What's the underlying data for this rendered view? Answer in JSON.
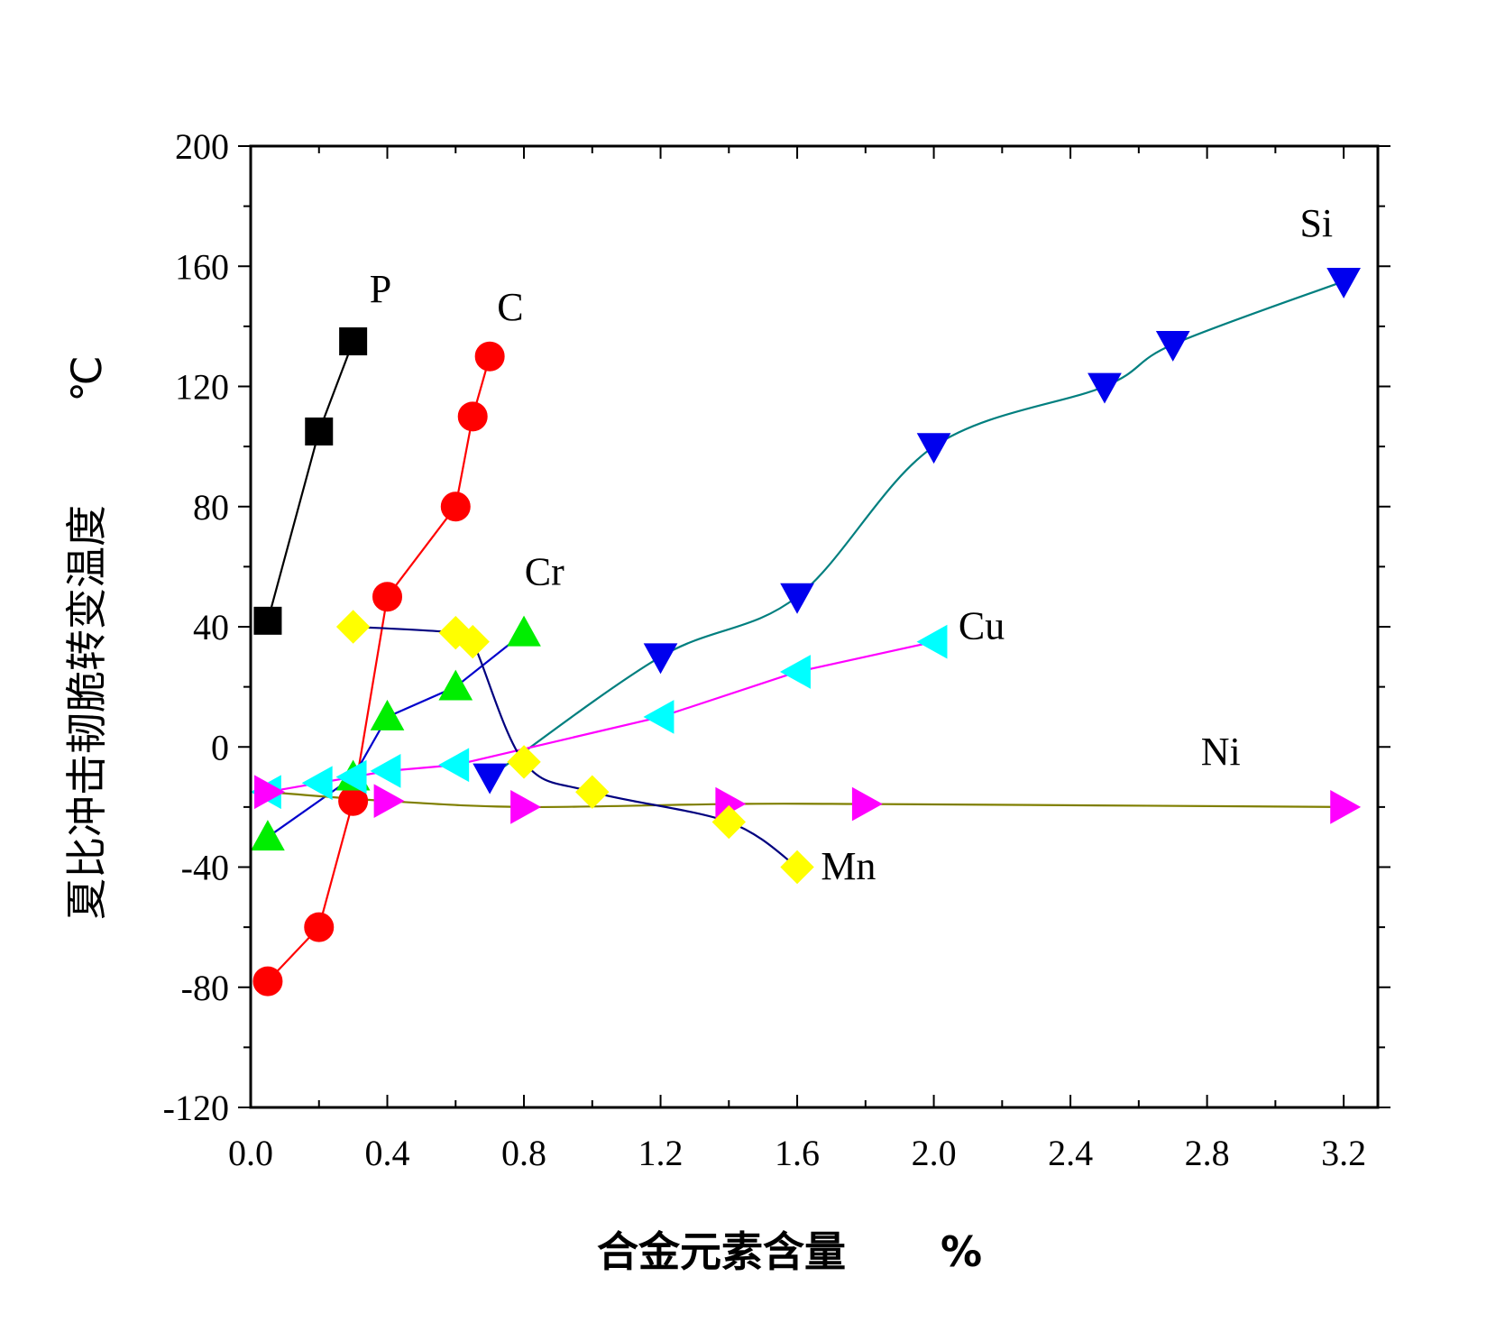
{
  "chart_data": {
    "type": "line",
    "xlabel": "合金元素含量",
    "xlabel_unit": "%",
    "ylabel": "夏比冲击韧脆转变温度",
    "ylabel_unit": "℃",
    "xlim": [
      0,
      3.3
    ],
    "ylim": [
      -120,
      200
    ],
    "x_ticks": [
      "0.0",
      "0.4",
      "0.8",
      "1.2",
      "1.6",
      "2.0",
      "2.4",
      "2.8",
      "3.2"
    ],
    "y_ticks": [
      "200",
      "160",
      "120",
      "80",
      "40",
      "0",
      "-40",
      "-80",
      "-120"
    ],
    "grid": false,
    "legend": "none",
    "series": [
      {
        "name": "P",
        "marker": "square",
        "color": "#000000",
        "line_color": "#000000",
        "x": [
          0.05,
          0.2,
          0.3
        ],
        "y": [
          42,
          105,
          135
        ]
      },
      {
        "name": "C",
        "marker": "circle",
        "color": "#ff0000",
        "line_color": "#ff0000",
        "x": [
          0.05,
          0.2,
          0.3,
          0.4,
          0.6,
          0.65,
          0.7
        ],
        "y": [
          -78,
          -60,
          -18,
          50,
          80,
          110,
          130
        ]
      },
      {
        "name": "Cr",
        "marker": "triangle-up",
        "color": "#00ee00",
        "line_color": "#0000cc",
        "x": [
          0.05,
          0.3,
          0.4,
          0.6,
          0.8
        ],
        "y": [
          -30,
          -10,
          10,
          20,
          38
        ]
      },
      {
        "name": "Si",
        "marker": "triangle-down",
        "color": "#0000ee",
        "line_color": "#007f7f",
        "x": [
          0.7,
          1.2,
          1.6,
          2.0,
          2.5,
          2.7,
          3.2
        ],
        "y": [
          -10,
          30,
          50,
          100,
          120,
          134,
          155
        ]
      },
      {
        "name": "Cu",
        "marker": "triangle-left",
        "color": "#00ffff",
        "line_color": "#ff00ff",
        "x": [
          0.05,
          0.2,
          0.3,
          0.4,
          0.6,
          1.2,
          1.6,
          2.0
        ],
        "y": [
          -15,
          -12,
          -10,
          -8,
          -6,
          10,
          25,
          35
        ]
      },
      {
        "name": "Ni",
        "marker": "triangle-right",
        "color": "#ff00ff",
        "line_color": "#7f7f00",
        "x": [
          0.05,
          0.4,
          0.8,
          1.4,
          1.8,
          3.2
        ],
        "y": [
          -15,
          -18,
          -20,
          -19,
          -19,
          -20
        ]
      },
      {
        "name": "Mn",
        "marker": "diamond",
        "color": "#ffff00",
        "line_color": "#00007f",
        "x": [
          0.3,
          0.6,
          0.65,
          0.8,
          1.0,
          1.4,
          1.6
        ],
        "y": [
          40,
          38,
          35,
          -5,
          -15,
          -25,
          -40
        ]
      }
    ]
  }
}
